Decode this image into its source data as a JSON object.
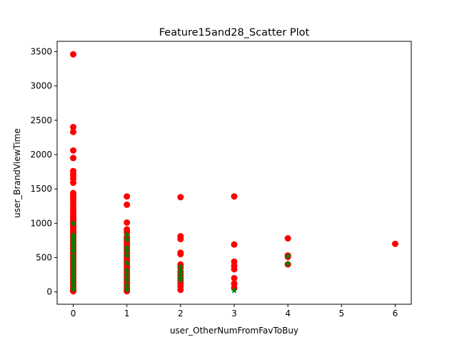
{
  "chart_data": {
    "type": "scatter",
    "title": "Feature15and28_Scatter Plot",
    "xlabel": "user_OtherNumFromFavToBuy",
    "ylabel": "user_BrandViewTime",
    "xlim": [
      -0.3,
      6.3
    ],
    "ylim": [
      -180,
      3650
    ],
    "xticks": [
      0,
      1,
      2,
      3,
      4,
      5,
      6
    ],
    "yticks": [
      0,
      500,
      1000,
      1500,
      2000,
      2500,
      3000,
      3500
    ],
    "grid": false,
    "series": [
      {
        "color": "#ff0000",
        "marker": "circle",
        "points": [
          [
            0,
            3460
          ],
          [
            0,
            2400
          ],
          [
            0,
            2330
          ],
          [
            0,
            2060
          ],
          [
            0,
            1950
          ],
          [
            0,
            1760
          ],
          [
            0,
            1720
          ],
          [
            0,
            1690
          ],
          [
            0,
            1650
          ],
          [
            0,
            1590
          ],
          [
            0,
            1440
          ],
          [
            0,
            1410
          ],
          [
            0,
            1380
          ],
          [
            0,
            1340
          ],
          [
            0,
            1300
          ],
          [
            0,
            1260
          ],
          [
            0,
            1220
          ],
          [
            0,
            1180
          ],
          [
            0,
            1150
          ],
          [
            0,
            1110
          ],
          [
            0,
            1080
          ],
          [
            0,
            1050
          ],
          [
            0,
            1020
          ],
          [
            0,
            990
          ],
          [
            0,
            960
          ],
          [
            0,
            930
          ],
          [
            0,
            900
          ],
          [
            0,
            870
          ],
          [
            0,
            840
          ],
          [
            0,
            810
          ],
          [
            0,
            780
          ],
          [
            0,
            750
          ],
          [
            0,
            720
          ],
          [
            0,
            690
          ],
          [
            0,
            660
          ],
          [
            0,
            630
          ],
          [
            0,
            600
          ],
          [
            0,
            570
          ],
          [
            0,
            540
          ],
          [
            0,
            510
          ],
          [
            0,
            480
          ],
          [
            0,
            450
          ],
          [
            0,
            420
          ],
          [
            0,
            390
          ],
          [
            0,
            360
          ],
          [
            0,
            330
          ],
          [
            0,
            300
          ],
          [
            0,
            270
          ],
          [
            0,
            240
          ],
          [
            0,
            210
          ],
          [
            0,
            180
          ],
          [
            0,
            150
          ],
          [
            0,
            120
          ],
          [
            0,
            90
          ],
          [
            0,
            60
          ],
          [
            0,
            30
          ],
          [
            0,
            10
          ],
          [
            1,
            1390
          ],
          [
            1,
            1270
          ],
          [
            1,
            1010
          ],
          [
            1,
            910
          ],
          [
            1,
            870
          ],
          [
            1,
            800
          ],
          [
            1,
            770
          ],
          [
            1,
            740
          ],
          [
            1,
            700
          ],
          [
            1,
            660
          ],
          [
            1,
            620
          ],
          [
            1,
            580
          ],
          [
            1,
            540
          ],
          [
            1,
            500
          ],
          [
            1,
            460
          ],
          [
            1,
            420
          ],
          [
            1,
            380
          ],
          [
            1,
            340
          ],
          [
            1,
            300
          ],
          [
            1,
            260
          ],
          [
            1,
            220
          ],
          [
            1,
            180
          ],
          [
            1,
            140
          ],
          [
            1,
            100
          ],
          [
            1,
            60
          ],
          [
            1,
            30
          ],
          [
            1,
            10
          ],
          [
            2,
            1380
          ],
          [
            2,
            810
          ],
          [
            2,
            770
          ],
          [
            2,
            570
          ],
          [
            2,
            550
          ],
          [
            2,
            400
          ],
          [
            2,
            350
          ],
          [
            2,
            290
          ],
          [
            2,
            240
          ],
          [
            2,
            200
          ],
          [
            2,
            160
          ],
          [
            2,
            120
          ],
          [
            2,
            80
          ],
          [
            2,
            30
          ],
          [
            3,
            1390
          ],
          [
            3,
            690
          ],
          [
            3,
            440
          ],
          [
            3,
            380
          ],
          [
            3,
            330
          ],
          [
            3,
            200
          ],
          [
            3,
            120
          ],
          [
            3,
            60
          ],
          [
            4,
            780
          ],
          [
            4,
            530
          ],
          [
            4,
            510
          ],
          [
            4,
            400
          ],
          [
            6,
            700
          ]
        ]
      },
      {
        "color": "#008000",
        "marker": "star",
        "points": [
          [
            0,
            1000
          ],
          [
            0,
            830
          ],
          [
            0,
            790
          ],
          [
            0,
            750
          ],
          [
            0,
            700
          ],
          [
            0,
            640
          ],
          [
            0,
            590
          ],
          [
            0,
            520
          ],
          [
            0,
            460
          ],
          [
            0,
            400
          ],
          [
            0,
            340
          ],
          [
            0,
            280
          ],
          [
            0,
            220
          ],
          [
            0,
            160
          ],
          [
            0,
            100
          ],
          [
            0,
            40
          ],
          [
            1,
            830
          ],
          [
            1,
            760
          ],
          [
            1,
            640
          ],
          [
            1,
            600
          ],
          [
            1,
            530
          ],
          [
            1,
            420
          ],
          [
            1,
            310
          ],
          [
            1,
            240
          ],
          [
            1,
            170
          ],
          [
            1,
            90
          ],
          [
            1,
            30
          ],
          [
            2,
            360
          ],
          [
            2,
            300
          ],
          [
            2,
            250
          ],
          [
            2,
            200
          ],
          [
            2,
            170
          ],
          [
            3,
            20
          ],
          [
            4,
            520
          ],
          [
            4,
            410
          ]
        ]
      }
    ]
  }
}
